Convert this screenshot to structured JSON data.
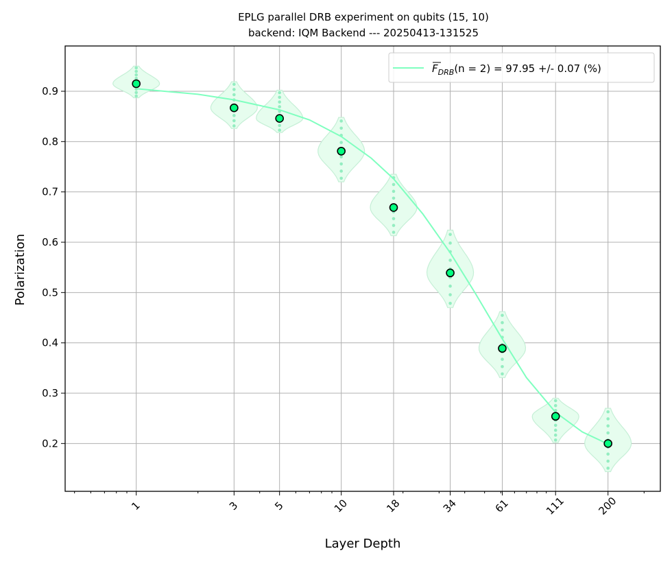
{
  "chart_data": {
    "type": "scatter",
    "title": "EPLG parallel DRB experiment on qubits (15, 10)",
    "subtitle": "backend: IQM Backend --- 20250413-131525",
    "xlabel": "Layer Depth",
    "ylabel": "Polarization",
    "xscale": "log",
    "xlim": [
      0.45,
      360
    ],
    "ylim": [
      0.105,
      0.99
    ],
    "x_ticks": [
      "1",
      "3",
      "5",
      "10",
      "18",
      "34",
      "61",
      "111",
      "200"
    ],
    "y_ticks": [
      "0.2",
      "0.3",
      "0.4",
      "0.5",
      "0.6",
      "0.7",
      "0.8",
      "0.9"
    ],
    "grid": true,
    "legend_position": "top-right",
    "legend": {
      "prefix": "F",
      "subscript": "DRB",
      "suffix": "(n = 2) = 97.95 +/- 0.07 (%)"
    },
    "colors": {
      "fit_line": "#7fffbf",
      "violin_fill": "#e6fdee",
      "violin_edge": "#c5efd6",
      "marker_fill": "#00ff7f",
      "marker_edge": "#000000",
      "sample_dots": "#7fe9b5",
      "grid": "#b0b0b0"
    },
    "series": [
      {
        "x": [
          1,
          3,
          5,
          10,
          18,
          34,
          61,
          111,
          200
        ],
        "means": [
          0.915,
          0.867,
          0.846,
          0.781,
          0.669,
          0.539,
          0.389,
          0.254,
          0.2
        ]
      }
    ],
    "fit": {
      "x": [
        1,
        2,
        3,
        5,
        7,
        10,
        14,
        18,
        25,
        34,
        45,
        61,
        80,
        111,
        150,
        200
      ],
      "y": [
        0.905,
        0.894,
        0.883,
        0.863,
        0.843,
        0.81,
        0.767,
        0.726,
        0.656,
        0.579,
        0.499,
        0.408,
        0.331,
        0.262,
        0.223,
        0.199
      ]
    },
    "distributions": [
      {
        "x": 1,
        "min": 0.887,
        "max": 0.95
      },
      {
        "x": 3,
        "min": 0.826,
        "max": 0.919
      },
      {
        "x": 5,
        "min": 0.818,
        "max": 0.902
      },
      {
        "x": 10,
        "min": 0.72,
        "max": 0.848
      },
      {
        "x": 18,
        "min": 0.613,
        "max": 0.735
      },
      {
        "x": 34,
        "min": 0.47,
        "max": 0.624
      },
      {
        "x": 61,
        "min": 0.331,
        "max": 0.462
      },
      {
        "x": 111,
        "min": 0.202,
        "max": 0.29
      },
      {
        "x": 200,
        "min": 0.144,
        "max": 0.27
      }
    ]
  }
}
